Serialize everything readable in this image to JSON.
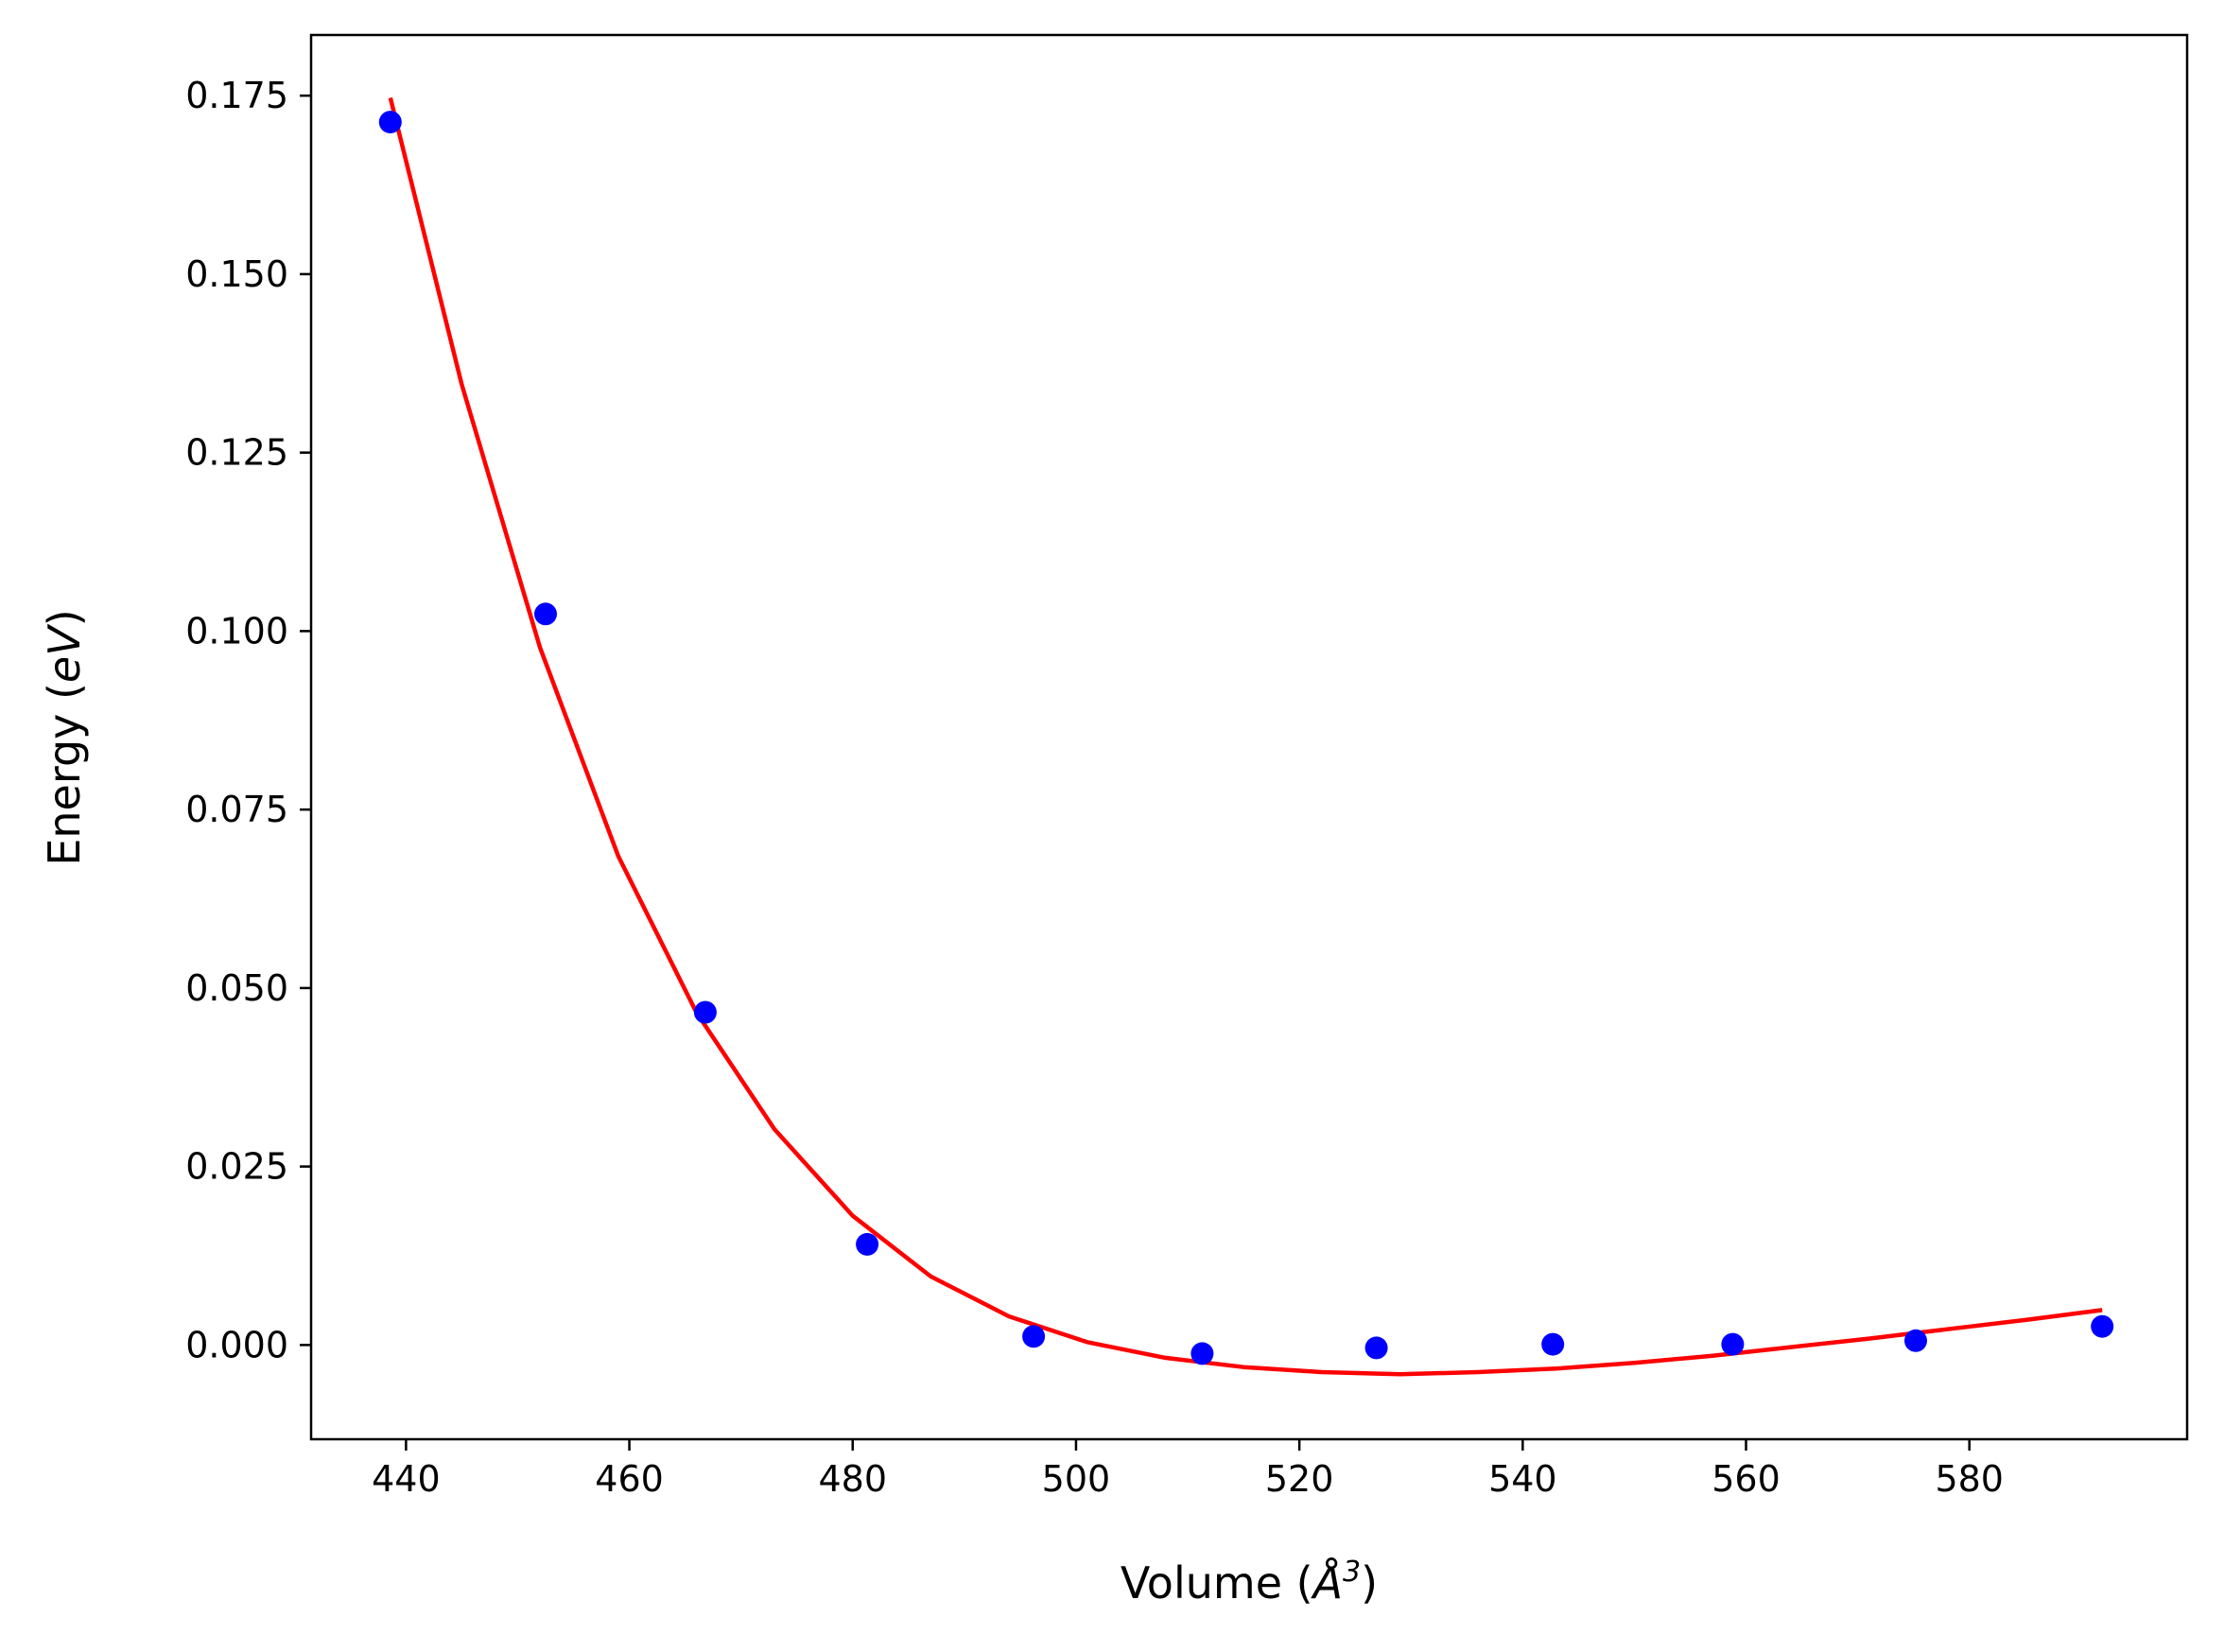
{
  "chart_data": {
    "type": "scatter",
    "title": "",
    "xlabel": {
      "prefix": "Volume (",
      "symbol": "Å",
      "superscript": "3",
      "suffix": ")"
    },
    "ylabel": {
      "prefix": "Energy (",
      "symbol": "eV",
      "suffix": ")"
    },
    "xlim": [
      431.5,
      599.5
    ],
    "ylim": [
      -0.0132,
      0.1835
    ],
    "xticks": [
      440,
      460,
      480,
      500,
      520,
      540,
      560,
      580
    ],
    "xtick_labels": [
      "440",
      "460",
      "480",
      "500",
      "520",
      "540",
      "560",
      "580"
    ],
    "yticks": [
      0.0,
      0.025,
      0.05,
      0.075,
      0.1,
      0.125,
      0.15,
      0.175
    ],
    "ytick_labels": [
      "0.000",
      "0.025",
      "0.050",
      "0.075",
      "0.100",
      "0.125",
      "0.150",
      "0.175"
    ],
    "grid": false,
    "legend": "none",
    "series": [
      {
        "kind": "points",
        "color": "#0000ff",
        "x": [
          438.6,
          452.5,
          466.8,
          481.3,
          496.2,
          511.3,
          526.9,
          542.7,
          558.8,
          575.2,
          591.9
        ],
        "y": [
          0.1713,
          0.1024,
          0.0466,
          0.0141,
          0.0012,
          -0.0012,
          -0.0004,
          0.0001,
          0.0001,
          0.0006,
          0.0026
        ]
      },
      {
        "kind": "fit-line",
        "color": "#ff0000",
        "x": [
          438.6,
          445,
          452,
          459,
          466,
          473,
          480,
          487,
          494,
          501,
          508,
          515,
          522,
          529,
          536,
          543,
          550,
          557,
          564,
          571,
          578,
          585,
          591.9
        ],
        "y": [
          0.1747,
          0.1345,
          0.0977,
          0.0685,
          0.0466,
          0.0302,
          0.0181,
          0.0096,
          0.004,
          0.0004,
          -0.0018,
          -0.0031,
          -0.0038,
          -0.0041,
          -0.0038,
          -0.0033,
          -0.0025,
          -0.0015,
          -0.0003,
          0.0009,
          0.0022,
          0.0035,
          0.0049
        ]
      }
    ]
  }
}
